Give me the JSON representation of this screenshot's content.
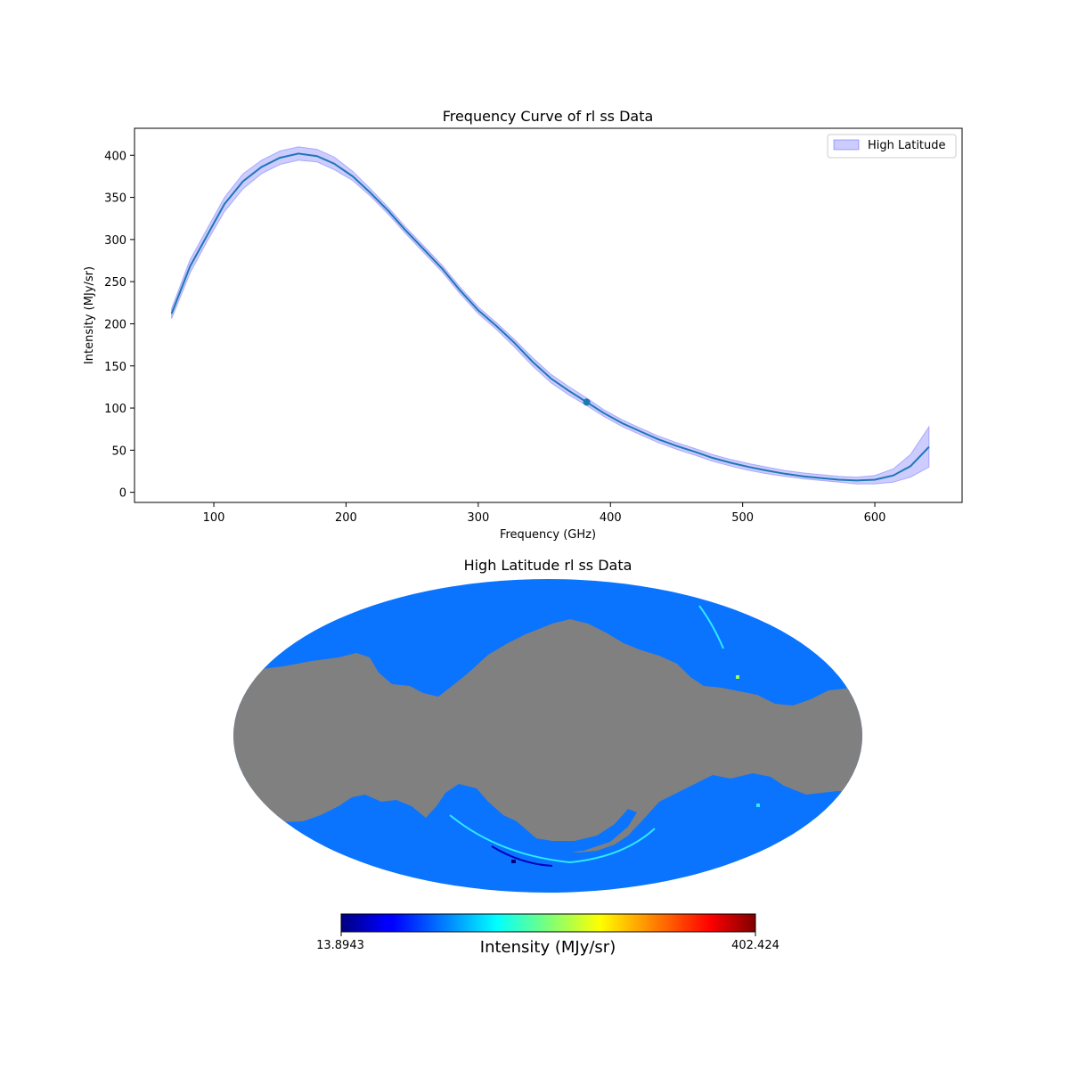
{
  "chart_data": [
    {
      "type": "line",
      "title": "Frequency Curve of rl ss Data",
      "xlabel": "Frequency (GHz)",
      "ylabel": "Intensity (MJy/sr)",
      "xlim": [
        40,
        666
      ],
      "ylim": [
        -12,
        432
      ],
      "xticks": [
        100,
        200,
        300,
        400,
        500,
        600
      ],
      "yticks": [
        0,
        50,
        100,
        150,
        200,
        250,
        300,
        350,
        400
      ],
      "grid": false,
      "legend": {
        "placement": "top-right",
        "entries": [
          "High Latitude"
        ]
      },
      "line_color": "#1f77b4",
      "band_color": "#0000ff",
      "series": [
        {
          "x": [
            68,
            82,
            95,
            108,
            122,
            136,
            150,
            164,
            178,
            191,
            205,
            218,
            232,
            245,
            259,
            273,
            286,
            300,
            314,
            327,
            341,
            355,
            368,
            382,
            395,
            409,
            423,
            436,
            450,
            464,
            477,
            491,
            505,
            518,
            532,
            546,
            559,
            573,
            586,
            600,
            614,
            627,
            641
          ],
          "y": [
            212,
            268,
            305,
            342,
            369,
            386,
            397,
            402,
            399,
            390,
            375,
            356,
            334,
            311,
            288,
            265,
            240,
            216,
            197,
            178,
            155,
            135,
            121,
            107,
            94,
            82,
            72,
            63,
            55,
            48,
            41,
            35,
            30,
            26,
            22,
            19,
            17,
            15,
            14,
            15,
            20,
            31,
            54
          ],
          "lower": [
            206,
            260,
            298,
            333,
            360,
            378,
            389,
            394,
            392,
            383,
            370,
            352,
            330,
            307,
            284,
            261,
            236,
            212,
            193,
            173,
            150,
            130,
            116,
            103,
            90,
            78,
            68,
            59,
            51,
            44,
            37,
            31,
            26,
            22,
            19,
            16,
            14,
            12,
            10,
            10,
            12,
            18,
            30
          ],
          "upper": [
            218,
            276,
            313,
            350,
            378,
            394,
            405,
            410,
            407,
            398,
            381,
            361,
            338,
            315,
            292,
            269,
            244,
            220,
            201,
            182,
            160,
            140,
            126,
            112,
            98,
            86,
            76,
            67,
            59,
            52,
            45,
            39,
            34,
            30,
            26,
            23,
            21,
            19,
            18,
            20,
            28,
            45,
            78
          ]
        }
      ],
      "highlight_point": {
        "x": 382,
        "y": 107
      }
    },
    {
      "type": "heatmap",
      "title": "High Latitude rl ss Data",
      "projection": "mollweide",
      "colormap": "jet",
      "masked_color": "#808080",
      "colorbar": {
        "label": "Intensity (MJy/sr)",
        "min": "13.8943",
        "max": "402.424"
      }
    }
  ]
}
